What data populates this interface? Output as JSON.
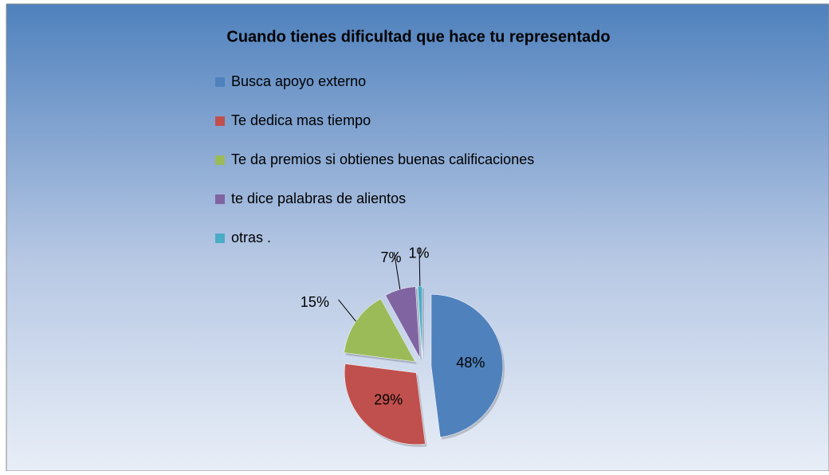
{
  "chart_data": {
    "type": "pie",
    "title": "Cuando tienes dificultad que hace tu representado",
    "categories": [
      "Busca apoyo externo",
      "Te dedica mas tiempo",
      "Te da premios si obtienes buenas calificaciones",
      "te dice palabras de alientos",
      "otras ."
    ],
    "values": [
      48,
      29,
      15,
      7,
      1
    ],
    "value_labels": [
      "48%",
      "29%",
      "15%",
      "7%",
      "1%"
    ],
    "colors": [
      "#4f81bd",
      "#c0504d",
      "#9bbb59",
      "#8064a2",
      "#4bacc6"
    ],
    "legend": "top"
  }
}
